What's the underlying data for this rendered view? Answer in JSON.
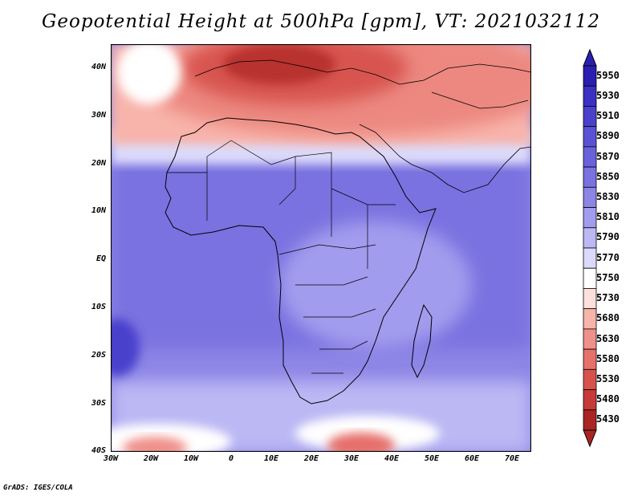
{
  "title": "Geopotential Height at 500hPa [gpm], VT: 2021032112",
  "credit": "GrADS: IGES/COLA",
  "lat_labels": [
    "40N",
    "30N",
    "20N",
    "10N",
    "EQ",
    "10S",
    "20S",
    "30S",
    "40S"
  ],
  "lon_labels": [
    "30W",
    "20W",
    "10W",
    "0",
    "10E",
    "20E",
    "30E",
    "40E",
    "50E",
    "60E",
    "70E"
  ],
  "colorbar": {
    "levels": [
      "5950",
      "5930",
      "5910",
      "5890",
      "5870",
      "5850",
      "5830",
      "5810",
      "5790",
      "5770",
      "5750",
      "5730",
      "5680",
      "5630",
      "5580",
      "5530",
      "5480",
      "5430"
    ],
    "colors": [
      "#2a1fb0",
      "#3a30c2",
      "#4a40cc",
      "#5a52d6",
      "#6a62dc",
      "#7a72e0",
      "#8c85e6",
      "#a29cee",
      "#bcb8f4",
      "#dcdafa",
      "#ffffff",
      "#fde0dc",
      "#f8b4ab",
      "#f0908a",
      "#e6706a",
      "#d8524d",
      "#c63a38",
      "#aa2424"
    ]
  },
  "map_colors": {
    "ocean_deep": "#7069dd",
    "tropics": "#8d86e6",
    "sub": "#b0abf0",
    "transition": "#dcdafa",
    "warm1": "#f8b4ab",
    "warm2": "#ec8880",
    "warm3": "#d85450",
    "warm4": "#b8302e"
  }
}
